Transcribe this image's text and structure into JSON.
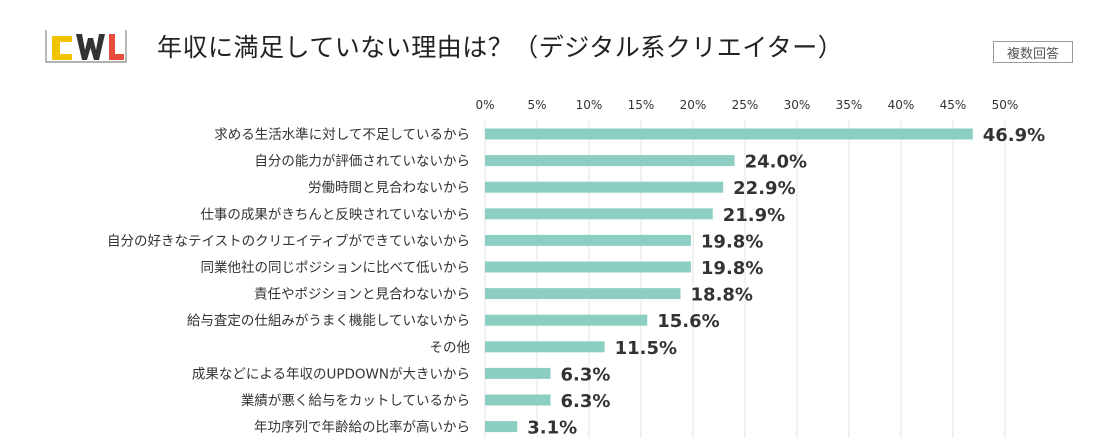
{
  "header": {
    "logo_text": "CWL",
    "title": "年収に満足していない理由は？（デジタル系クリエイター）",
    "badge": "複数回答"
  },
  "colors": {
    "bar": "#8ccfc2",
    "grid": "#e3e3e3",
    "logo_yellow": "#f2c300",
    "logo_red": "#e84c3d",
    "logo_dark": "#333333"
  },
  "chart_data": {
    "type": "bar",
    "orientation": "horizontal",
    "title": "年収に満足していない理由は？（デジタル系クリエイター）",
    "xlim": [
      0,
      50
    ],
    "x_ticks": [
      "0%",
      "5%",
      "10%",
      "15%",
      "20%",
      "25%",
      "30%",
      "35%",
      "40%",
      "45%",
      "50%"
    ],
    "x_tick_values": [
      0,
      5,
      10,
      15,
      20,
      25,
      30,
      35,
      40,
      45,
      50
    ],
    "grid": true,
    "categories": [
      "求める生活水準に対して不足しているから",
      "自分の能力が評価されていないから",
      "労働時間と見合わないから",
      "仕事の成果がきちんと反映されていないから",
      "自分の好きなテイストのクリエイティブができていないから",
      "同業他社の同じポジションに比べて低いから",
      "責任やポジションと見合わないから",
      "給与査定の仕組みがうまく機能していないから",
      "その他",
      "成果などによる年収のUPDOWNが大きいから",
      "業績が悪く給与をカットしているから",
      "年功序列で年齢給の比率が高いから"
    ],
    "values": [
      46.9,
      24.0,
      22.9,
      21.9,
      19.8,
      19.8,
      18.8,
      15.6,
      11.5,
      6.3,
      6.3,
      3.1
    ],
    "value_labels": [
      "46.9%",
      "24.0%",
      "22.9%",
      "21.9%",
      "19.8%",
      "19.8%",
      "18.8%",
      "15.6%",
      "11.5%",
      "6.3%",
      "6.3%",
      "3.1%"
    ]
  }
}
